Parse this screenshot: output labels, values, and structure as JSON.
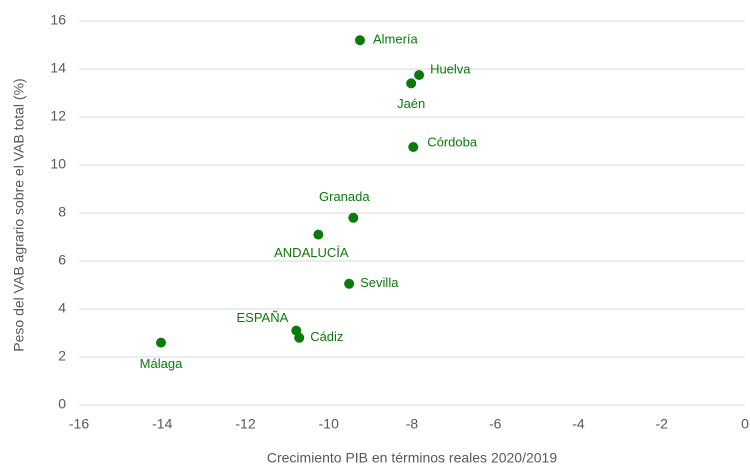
{
  "chart_data": {
    "type": "scatter",
    "xlabel": "Crecimiento PIB en términos reales 2020/2019",
    "ylabel": "Peso del VAB agrario sobre el VAB total (%)",
    "labels": [
      "Almería",
      "Huelva",
      "Jaén",
      "Córdoba",
      "Granada",
      "ANDALUCÍA",
      "Sevilla",
      "ESPAÑA",
      "Cádiz",
      "Málaga"
    ],
    "x": [
      -9.25,
      -7.83,
      -8.02,
      -7.97,
      -9.41,
      -10.25,
      -9.51,
      -10.78,
      -10.71,
      -14.03
    ],
    "values": [
      15.2,
      13.75,
      13.4,
      10.75,
      7.8,
      7.1,
      5.05,
      3.1,
      2.8,
      2.6
    ],
    "color": "#0b7a0b",
    "xlim": [
      -16,
      0
    ],
    "xticks": [
      -16,
      -14,
      -12,
      -10,
      -8,
      -6,
      -4,
      -2,
      0
    ],
    "ylim": [
      0,
      16
    ],
    "yticks": [
      0,
      2,
      4,
      6,
      8,
      10,
      12,
      14,
      16
    ],
    "grid": true
  }
}
